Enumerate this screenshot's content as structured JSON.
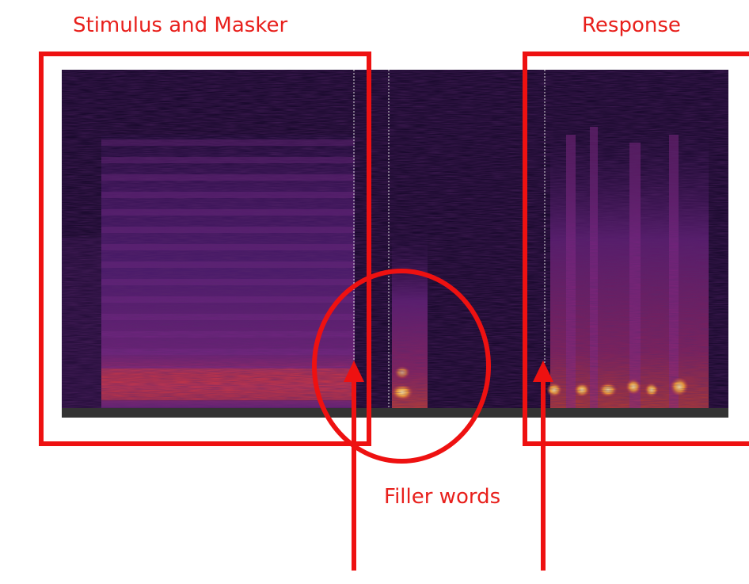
{
  "labels": {
    "stimulus": "Stimulus and Masker",
    "response": "Response",
    "filler": "Filler words"
  }
}
